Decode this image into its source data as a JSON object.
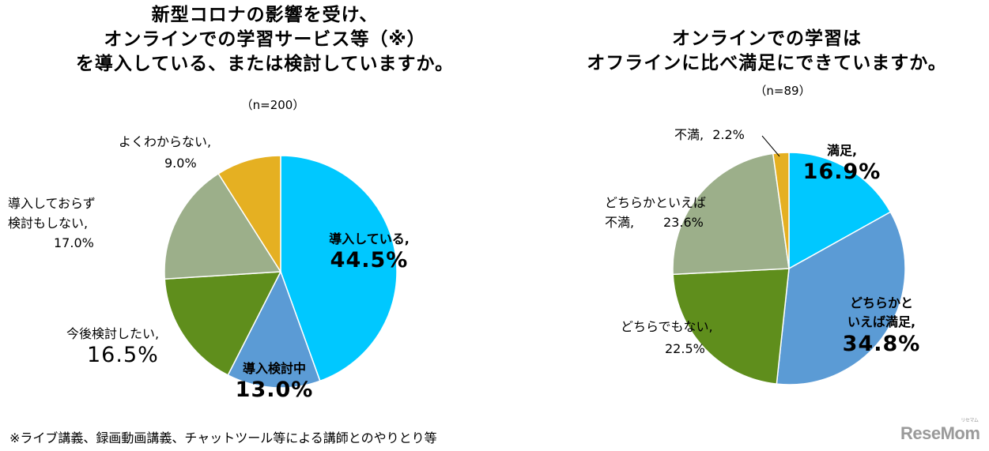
{
  "chart_data": [
    {
      "type": "pie",
      "title": [
        "新型コロナの影響を受け、",
        "オンラインでの学習サービス等（※）",
        "を導入している、または検討していますか。"
      ],
      "sample": "（n=200）",
      "categories": [
        "導入している",
        "導入検討中",
        "今後検討したい",
        "導入しておらず検討もしない",
        "よくわからない"
      ],
      "values": [
        44.5,
        13.0,
        16.5,
        17.0,
        9.0
      ],
      "colors": [
        "#00c8ff",
        "#5b9bd5",
        "#5f8e1c",
        "#9caf8a",
        "#e5b022"
      ],
      "labels": [
        {
          "name": "導入している,",
          "pct": "44.5%"
        },
        {
          "name": "導入検討中",
          "pct": "13.0%"
        },
        {
          "name": "今後検討したい,",
          "pct": "16.5%"
        },
        {
          "name": "導入しておらず\n検討もしない,",
          "pct": "17.0%"
        },
        {
          "name": "よくわからない,",
          "pct": "9.0%"
        }
      ]
    },
    {
      "type": "pie",
      "title": [
        "オンラインでの学習は",
        "オフラインに比べ満足にできていますか。"
      ],
      "sample": "（n=89）",
      "categories": [
        "満足",
        "どちらかといえば満足",
        "どちらでもない",
        "どちらかといえば不満",
        "不満"
      ],
      "values": [
        16.9,
        34.8,
        22.5,
        23.6,
        2.2
      ],
      "colors": [
        "#00c8ff",
        "#5b9bd5",
        "#5f8e1c",
        "#9caf8a",
        "#e5b022"
      ],
      "labels": [
        {
          "name": "満足,",
          "pct": "16.9%"
        },
        {
          "name": "どちらかと\nいえば満足,",
          "pct": "34.8%"
        },
        {
          "name": "どちらでもない,",
          "pct": "22.5%"
        },
        {
          "name": "どちらかといえば\n不満,",
          "pct": "23.6%"
        },
        {
          "name": "不満,",
          "pct": "2.2%"
        }
      ]
    }
  ],
  "footnote": "※ライブ講義、録画動画講義、チャットツール等による講師とのやりとり等",
  "watermark": {
    "main": "ReseMom",
    "sub": "リセマム"
  }
}
